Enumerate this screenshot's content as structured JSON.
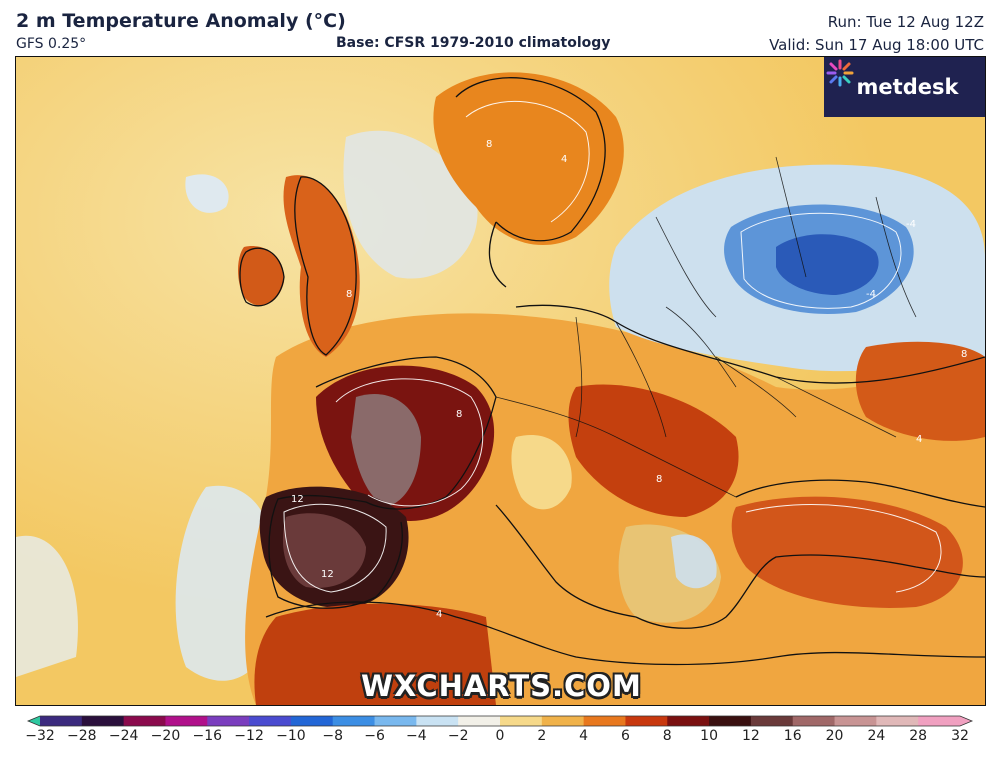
{
  "header": {
    "title": "2 m Temperature Anomaly (°C)",
    "model": "GFS 0.25°",
    "base": "Base: CFSR 1979-2010 climatology",
    "run": "Run: Tue 12 Aug 12Z",
    "valid": "Valid: Sun 17 Aug 18:00 UTC"
  },
  "logo": {
    "text": "metdesk",
    "icon": "metdesk-star-icon"
  },
  "watermark": "WXCHARTS.COM",
  "contour_labels": [
    "8",
    "4",
    "12",
    "-4"
  ],
  "colorbar": {
    "ticks": [
      "−32",
      "−28",
      "−24",
      "−20",
      "−16",
      "−12",
      "−10",
      "−8",
      "−6",
      "−4",
      "−2",
      "0",
      "2",
      "4",
      "6",
      "8",
      "10",
      "12",
      "16",
      "20",
      "24",
      "28",
      "32"
    ],
    "colors": [
      "#2ec8a0",
      "#3b2a7e",
      "#2a0f3c",
      "#8a0a4c",
      "#b0108a",
      "#7a3dbe",
      "#4a4bd0",
      "#2266d6",
      "#3c8ee4",
      "#79b8ee",
      "#c9e2f3",
      "#f2f0e8",
      "#f6d98a",
      "#f0b24a",
      "#e8781e",
      "#c8380e",
      "#7a1010",
      "#3a1010",
      "#6a3a3a",
      "#a06868",
      "#c89494",
      "#e0b8b8",
      "#f0a0c0"
    ]
  }
}
